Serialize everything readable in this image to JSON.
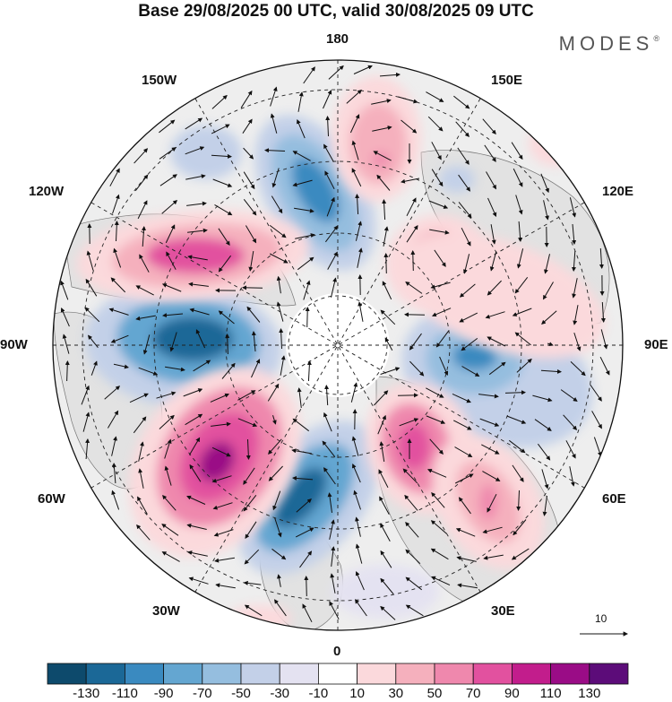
{
  "title": "Base 29/08/2025 00 UTC, valid 30/08/2025 09 UTC",
  "logo": "MODES",
  "logo_mark": "®",
  "longitude_labels": {
    "lon_180": "180",
    "lon_150w": "150W",
    "lon_150e": "150E",
    "lon_120w": "120W",
    "lon_120e": "120E",
    "lon_90w": "90W",
    "lon_90e": "90E",
    "lon_60w": "60W",
    "lon_60e": "60E",
    "lon_30w": "30W",
    "lon_30e": "30E",
    "lon_0": "0"
  },
  "reference_vector_label": "10",
  "colorbar": {
    "colors": [
      "#0d4a6c",
      "#1b6897",
      "#3a8ac0",
      "#64a6d1",
      "#95bedf",
      "#c3d0e8",
      "#e4e2f1",
      "#ffffff",
      "#fbd9dc",
      "#f5b0bd",
      "#ef88ad",
      "#e2519f",
      "#c21d8c",
      "#9a0c86",
      "#5c0c79"
    ],
    "tick_labels": [
      "-130",
      "-110",
      "-90",
      "-70",
      "-50",
      "-30",
      "-10",
      "10",
      "30",
      "50",
      "70",
      "90",
      "110",
      "130"
    ]
  },
  "colors": {
    "land_background": "#e8e8e8",
    "coastline": "#555555",
    "graticule": "#222222"
  }
}
